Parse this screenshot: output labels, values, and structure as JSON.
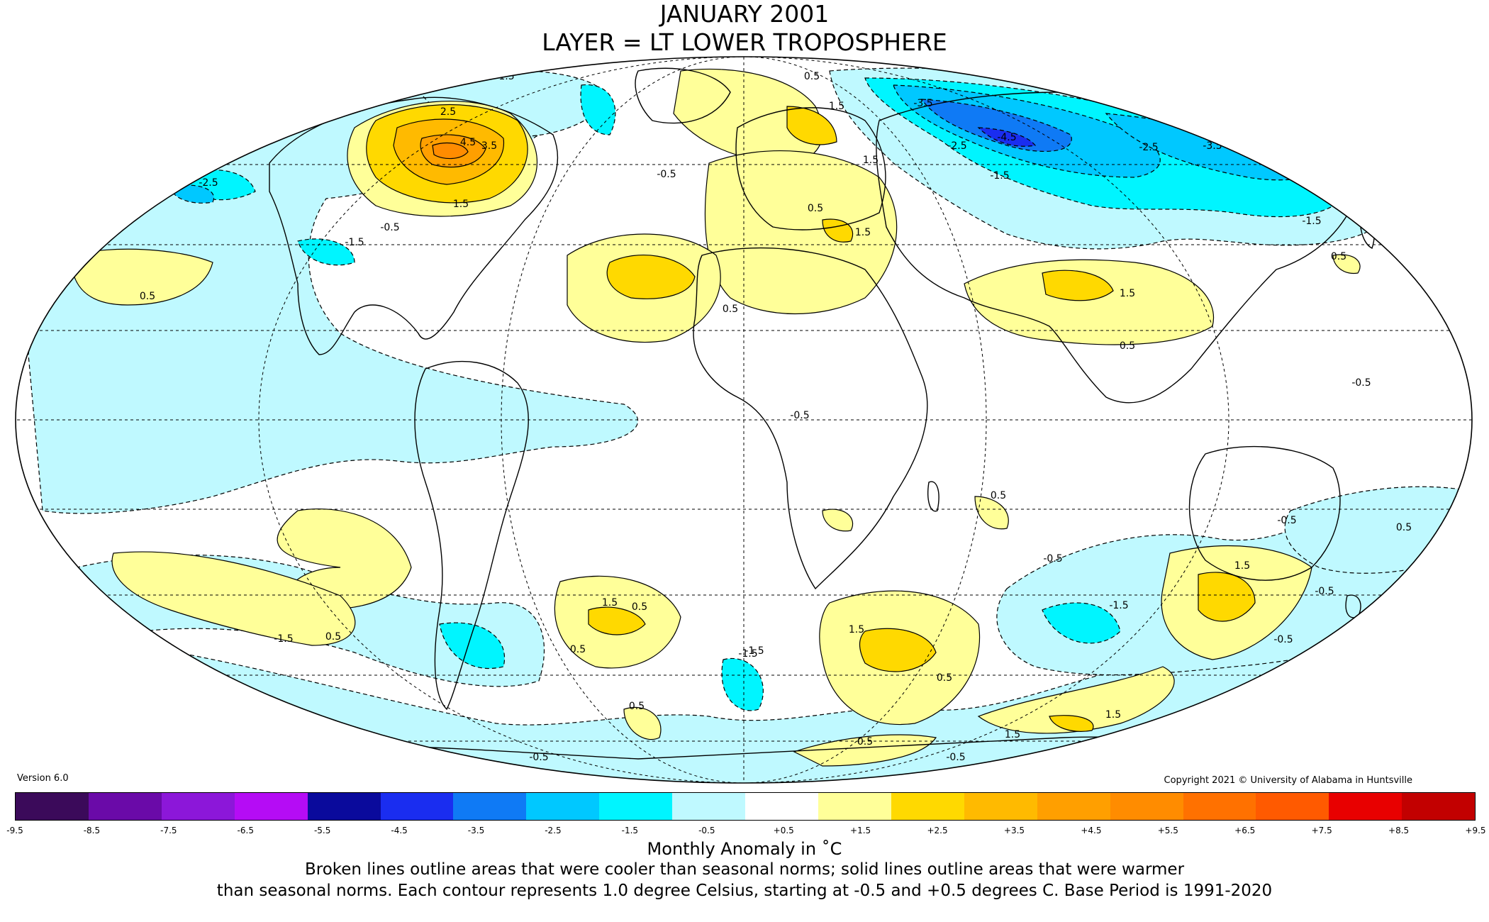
{
  "header": {
    "title_line1": "JANUARY 2001",
    "title_line2": "LAYER = LT LOWER TROPOSPHERE"
  },
  "footer": {
    "version": "Version 6.0",
    "copyright": "Copyright 2021 © University of Alabama in Huntsville",
    "units_label": "Monthly Anomaly in ˚C",
    "description_line1": "Broken lines outline areas that were cooler than seasonal norms; solid lines outline areas that were warmer",
    "description_line2": "than seasonal norms. Each contour represents 1.0 degree Celsius, starting at -0.5 and +0.5 degrees C. Base Period is 1991-2020"
  },
  "colorbar": {
    "colors": [
      "#3b0a5a",
      "#6a0aa8",
      "#8c17d9",
      "#b50cf5",
      "#0a0a9c",
      "#1a2df0",
      "#0f7af5",
      "#00c8ff",
      "#00f5ff",
      "#bff9ff",
      "#ffffff",
      "#ffff99",
      "#ffd900",
      "#ffba00",
      "#ff9f00",
      "#ff8c00",
      "#ff7100",
      "#ff5a00",
      "#e80000",
      "#c20000"
    ],
    "tick_labels": [
      "-9.5",
      "-8.5",
      "-7.5",
      "-6.5",
      "-5.5",
      "-4.5",
      "-3.5",
      "-2.5",
      "-1.5",
      "-0.5",
      "+0.5",
      "+1.5",
      "+2.5",
      "+3.5",
      "+4.5",
      "+5.5",
      "+6.5",
      "+7.5",
      "+8.5",
      "+9.5"
    ]
  },
  "map": {
    "projection": "mollweide",
    "contour_labels": [
      {
        "text": "4.5"
      },
      {
        "text": "3.5"
      },
      {
        "text": "2.5"
      },
      {
        "text": "1.5"
      },
      {
        "text": "-1.5"
      },
      {
        "text": "-2.5"
      },
      {
        "text": "-0.5"
      },
      {
        "text": "0.5"
      },
      {
        "text": "-0.5"
      },
      {
        "text": "-1.5"
      },
      {
        "text": "0.5"
      },
      {
        "text": "0.5"
      },
      {
        "text": "1.5"
      },
      {
        "text": "1.5"
      },
      {
        "text": "0.5"
      },
      {
        "text": "1.5"
      },
      {
        "text": "-3.5"
      },
      {
        "text": "-4.5"
      },
      {
        "text": "-2.5"
      },
      {
        "text": "-1.5"
      },
      {
        "text": "-3.5"
      },
      {
        "text": "-2.5"
      },
      {
        "text": "-1.5"
      },
      {
        "text": "1.5"
      },
      {
        "text": "0.5"
      },
      {
        "text": "0.5"
      },
      {
        "text": "-0.5"
      },
      {
        "text": "-0.5"
      },
      {
        "text": "0.5"
      },
      {
        "text": "1.5"
      },
      {
        "text": "0.5"
      },
      {
        "text": "0.5"
      },
      {
        "text": "-1.5"
      },
      {
        "text": "1.5"
      },
      {
        "text": "0.5"
      },
      {
        "text": "-1.5"
      },
      {
        "text": "-0.5"
      },
      {
        "text": "1.5"
      },
      {
        "text": "-0.5"
      },
      {
        "text": "-0.5"
      },
      {
        "text": "0.5"
      },
      {
        "text": "-0.5"
      },
      {
        "text": "0.5"
      },
      {
        "text": "1.5"
      },
      {
        "text": "-0.5"
      },
      {
        "text": "0.5"
      },
      {
        "text": "1.5"
      },
      {
        "text": "-1.5"
      },
      {
        "text": "-0.5"
      },
      {
        "text": "-1.5"
      },
      {
        "text": "0.5"
      }
    ]
  }
}
